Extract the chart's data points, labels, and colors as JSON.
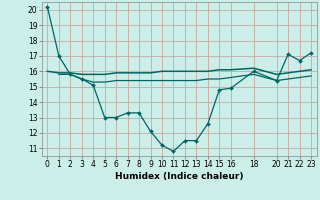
{
  "xlabel": "Humidex (Indice chaleur)",
  "bg_color": "#cceee8",
  "grid_color_major": "#c8a8a0",
  "grid_color_minor": "#ddc8c0",
  "line_color": "#006666",
  "xlim": [
    -0.5,
    23.5
  ],
  "ylim": [
    10.5,
    20.5
  ],
  "yticks": [
    11,
    12,
    13,
    14,
    15,
    16,
    17,
    18,
    19,
    20
  ],
  "xtick_positions": [
    0,
    1,
    2,
    3,
    4,
    5,
    6,
    7,
    8,
    9,
    10,
    11,
    12,
    13,
    14,
    15,
    16,
    18,
    20,
    21,
    22,
    23
  ],
  "xtick_labels": [
    "0",
    "1",
    "2",
    "3",
    "4",
    "5",
    "6",
    "7",
    "8",
    "9",
    "10",
    "11",
    "12",
    "13",
    "14",
    "15",
    "16",
    "18",
    "20",
    "21",
    "22",
    "23"
  ],
  "series1_x": [
    0,
    1,
    2,
    3,
    4,
    5,
    6,
    7,
    8,
    9,
    10,
    11,
    12,
    13,
    14,
    15,
    16,
    18,
    20,
    21,
    22,
    23
  ],
  "series1_y": [
    20.2,
    17.0,
    15.8,
    15.5,
    15.1,
    13.0,
    13.0,
    13.3,
    13.3,
    12.1,
    11.2,
    10.8,
    11.5,
    11.5,
    12.6,
    14.8,
    14.9,
    16.0,
    15.4,
    17.1,
    16.7,
    17.2
  ],
  "series2_x": [
    0,
    1,
    2,
    3,
    4,
    5,
    6,
    7,
    8,
    9,
    10,
    11,
    12,
    13,
    14,
    15,
    16,
    18,
    20,
    21,
    22,
    23
  ],
  "series2_y": [
    16.0,
    15.9,
    15.9,
    15.8,
    15.8,
    15.8,
    15.9,
    15.9,
    15.9,
    15.9,
    16.0,
    16.0,
    16.0,
    16.0,
    16.0,
    16.1,
    16.1,
    16.2,
    15.8,
    15.9,
    16.0,
    16.1
  ],
  "series3_x": [
    1,
    2,
    3,
    4,
    5,
    6,
    7,
    8,
    9,
    10,
    11,
    12,
    13,
    14,
    15,
    16,
    18,
    20,
    21,
    22,
    23
  ],
  "series3_y": [
    15.8,
    15.8,
    15.5,
    15.3,
    15.3,
    15.4,
    15.4,
    15.4,
    15.4,
    15.4,
    15.4,
    15.4,
    15.4,
    15.5,
    15.5,
    15.6,
    15.8,
    15.4,
    15.5,
    15.6,
    15.7
  ]
}
